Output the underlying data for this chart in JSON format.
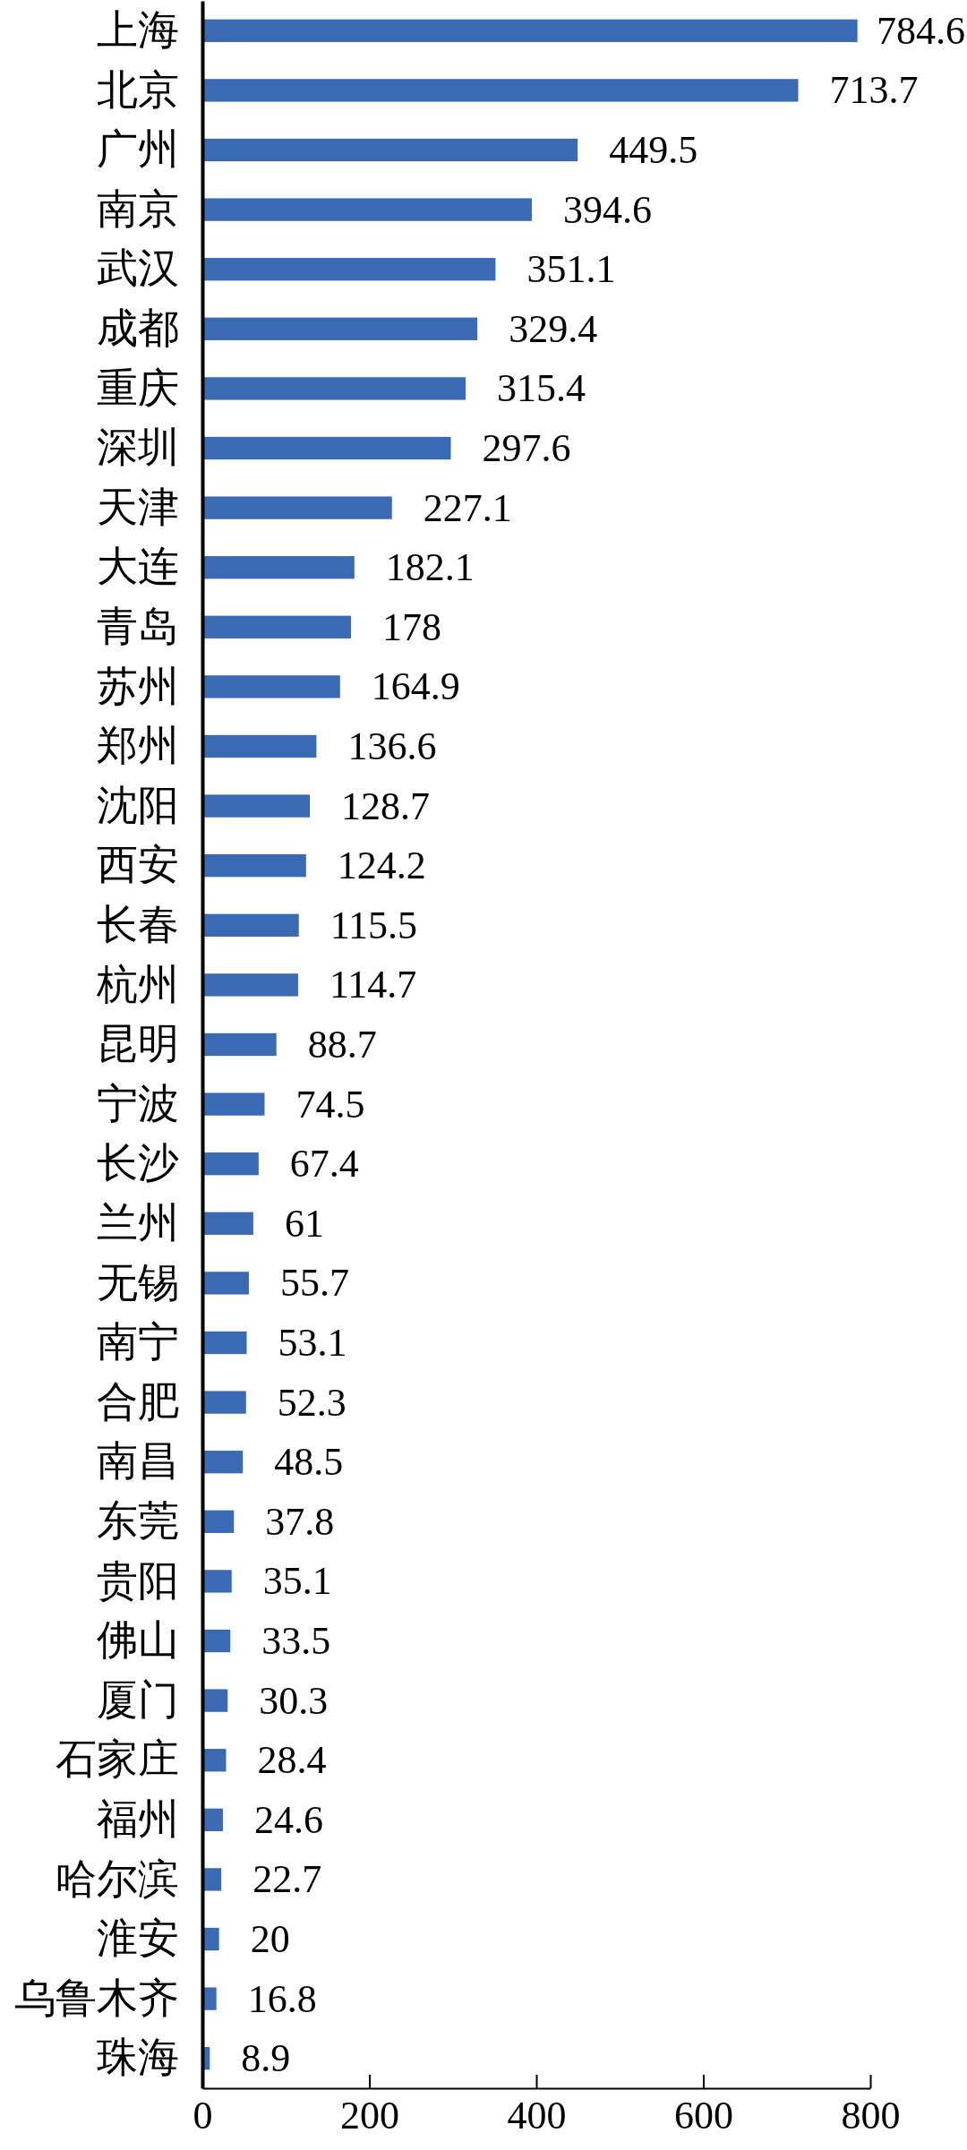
{
  "chart_data": {
    "type": "bar",
    "orientation": "horizontal",
    "categories": [
      "上海",
      "北京",
      "广州",
      "南京",
      "武汉",
      "成都",
      "重庆",
      "深圳",
      "天津",
      "大连",
      "青岛",
      "苏州",
      "郑州",
      "沈阳",
      "西安",
      "长春",
      "杭州",
      "昆明",
      "宁波",
      "长沙",
      "兰州",
      "无锡",
      "南宁",
      "合肥",
      "南昌",
      "东莞",
      "贵阳",
      "佛山",
      "厦门",
      "石家庄",
      "福州",
      "哈尔滨",
      "淮安",
      "乌鲁木齐",
      "珠海"
    ],
    "values": [
      784.6,
      713.7,
      449.5,
      394.6,
      351.1,
      329.4,
      315.4,
      297.6,
      227.1,
      182.1,
      178,
      164.9,
      136.6,
      128.7,
      124.2,
      115.5,
      114.7,
      88.7,
      74.5,
      67.4,
      61,
      55.7,
      53.1,
      52.3,
      48.5,
      37.8,
      35.1,
      33.5,
      30.3,
      28.4,
      24.6,
      22.7,
      20,
      16.8,
      8.9
    ],
    "color": "#3a6ab4",
    "xlim": [
      0,
      800
    ],
    "xticks": [
      0,
      200,
      400,
      600,
      800
    ],
    "data_labels": true
  }
}
